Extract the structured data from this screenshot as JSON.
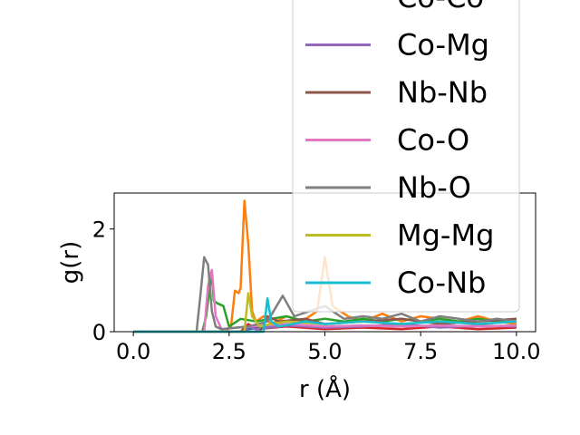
{
  "chart_data": {
    "type": "line",
    "title": "",
    "xlabel": "r (Å)",
    "ylabel": "g(r)",
    "xlim": [
      -0.5,
      10.5
    ],
    "ylim": [
      0,
      2.7
    ],
    "xticks": [
      0.0,
      2.5,
      5.0,
      7.5,
      10.0
    ],
    "xtick_labels": [
      "0.0",
      "2.5",
      "5.0",
      "7.5",
      "10.0"
    ],
    "yticks": [
      0,
      2
    ],
    "ytick_labels": [
      "0",
      "2"
    ],
    "grid": false,
    "legend_position": "upper right (extends above plot area)",
    "series": [
      {
        "name": "",
        "color": "#1f77b4",
        "x": [
          0.0,
          2.0,
          2.5,
          2.9,
          3.0,
          3.3,
          3.8,
          4.2,
          5.0,
          6.0,
          7.0,
          8.0,
          9.0,
          10.0
        ],
        "y": [
          0,
          0,
          0,
          0,
          0.05,
          0.08,
          0.1,
          0.12,
          0.1,
          0.12,
          0.1,
          0.12,
          0.1,
          0.12
        ]
      },
      {
        "name": "",
        "color": "#ff7f0e",
        "x": [
          0.0,
          2.4,
          2.55,
          2.65,
          2.75,
          2.8,
          2.9,
          3.0,
          3.1,
          3.2,
          3.4,
          3.6,
          4.0,
          4.4,
          4.8,
          5.0,
          5.2,
          5.6,
          6.0,
          6.5,
          7.0,
          7.5,
          8.0,
          8.5,
          9.0,
          9.5,
          10.0
        ],
        "y": [
          0,
          0,
          0.1,
          0.8,
          0.75,
          0.85,
          2.55,
          1.7,
          0.4,
          0.2,
          0.3,
          0.15,
          0.3,
          0.2,
          0.4,
          1.45,
          0.5,
          0.3,
          0.2,
          0.35,
          0.2,
          0.3,
          0.25,
          0.2,
          0.3,
          0.2,
          0.15
        ]
      },
      {
        "name": "",
        "color": "#2ca02c",
        "x": [
          0.0,
          1.8,
          1.9,
          2.0,
          2.05,
          2.1,
          2.2,
          2.35,
          2.5,
          2.8,
          3.2,
          3.6,
          4.0,
          4.5,
          5.0,
          5.5,
          6.0,
          6.5,
          7.0,
          7.5,
          8.0,
          8.5,
          9.0,
          9.5,
          10.0
        ],
        "y": [
          0,
          0,
          0.3,
          0.9,
          1.1,
          0.6,
          0.55,
          0.5,
          0.1,
          0.25,
          0.2,
          0.25,
          0.3,
          0.2,
          0.25,
          0.2,
          0.25,
          0.2,
          0.25,
          0.2,
          0.25,
          0.2,
          0.25,
          0.2,
          0.25
        ]
      },
      {
        "name": "Co-Co",
        "color": "#d62728",
        "x": [
          0.0,
          2.8,
          3.0,
          3.2,
          4.0,
          5.0,
          6.0,
          7.0,
          8.0,
          9.0,
          10.0
        ],
        "y": [
          0,
          0,
          0.15,
          0.05,
          0.1,
          0.05,
          0.08,
          0.05,
          0.1,
          0.05,
          0.08
        ]
      },
      {
        "name": "Co-Mg",
        "color": "#9467bd",
        "x": [
          0.0,
          2.9,
          3.0,
          3.2,
          4.0,
          5.0,
          6.0,
          7.0,
          8.0,
          9.0,
          10.0
        ],
        "y": [
          0,
          0,
          0.1,
          0.05,
          0.12,
          0.08,
          0.1,
          0.15,
          0.08,
          0.12,
          0.1
        ]
      },
      {
        "name": "Nb-Nb",
        "color": "#8c564b",
        "x": [
          0.0,
          3.3,
          3.5,
          3.8,
          4.5,
          5.0,
          6.0,
          7.0,
          8.0,
          9.0,
          10.0
        ],
        "y": [
          0,
          0,
          0.3,
          0.2,
          0.25,
          0.15,
          0.2,
          0.25,
          0.15,
          0.2,
          0.25
        ]
      },
      {
        "name": "Co-O",
        "color": "#e377c2",
        "x": [
          0.0,
          1.85,
          1.95,
          2.05,
          2.15,
          2.3,
          3.0,
          4.0,
          5.0,
          6.0,
          7.0,
          8.0,
          9.0,
          10.0
        ],
        "y": [
          0,
          0,
          0.9,
          1.2,
          0.3,
          0.05,
          0.1,
          0.15,
          0.1,
          0.12,
          0.1,
          0.12,
          0.1,
          0.12
        ]
      },
      {
        "name": "Nb-O",
        "color": "#7f7f7f",
        "x": [
          0.0,
          1.65,
          1.75,
          1.85,
          1.95,
          2.05,
          2.15,
          2.3,
          3.0,
          3.5,
          3.9,
          4.2,
          5.0,
          5.5,
          6.0,
          6.5,
          7.0,
          7.5,
          8.0,
          8.5,
          9.0,
          9.5,
          10.0
        ],
        "y": [
          0,
          0,
          0.7,
          1.45,
          1.3,
          0.4,
          0.1,
          0.05,
          0.1,
          0.2,
          0.7,
          0.3,
          0.5,
          0.25,
          0.3,
          0.25,
          0.35,
          0.2,
          0.3,
          0.25,
          0.2,
          0.25,
          0.2
        ]
      },
      {
        "name": "Mg-Mg",
        "color": "#bcbd22",
        "x": [
          0.0,
          2.9,
          3.0,
          3.1,
          3.3,
          3.6,
          4.0,
          5.0,
          6.0,
          7.0,
          8.0,
          9.0,
          10.0
        ],
        "y": [
          0,
          0,
          0.75,
          0.3,
          0.1,
          0.15,
          0.2,
          0.15,
          0.2,
          0.15,
          0.2,
          0.15,
          0.2
        ]
      },
      {
        "name": "Co-Nb",
        "color": "#17becf",
        "x": [
          0.0,
          3.4,
          3.5,
          3.6,
          3.8,
          4.5,
          5.0,
          6.0,
          7.0,
          8.0,
          9.0,
          10.0
        ],
        "y": [
          0,
          0,
          0.65,
          0.2,
          0.1,
          0.2,
          0.15,
          0.2,
          0.15,
          0.2,
          0.15,
          0.2
        ]
      }
    ]
  }
}
